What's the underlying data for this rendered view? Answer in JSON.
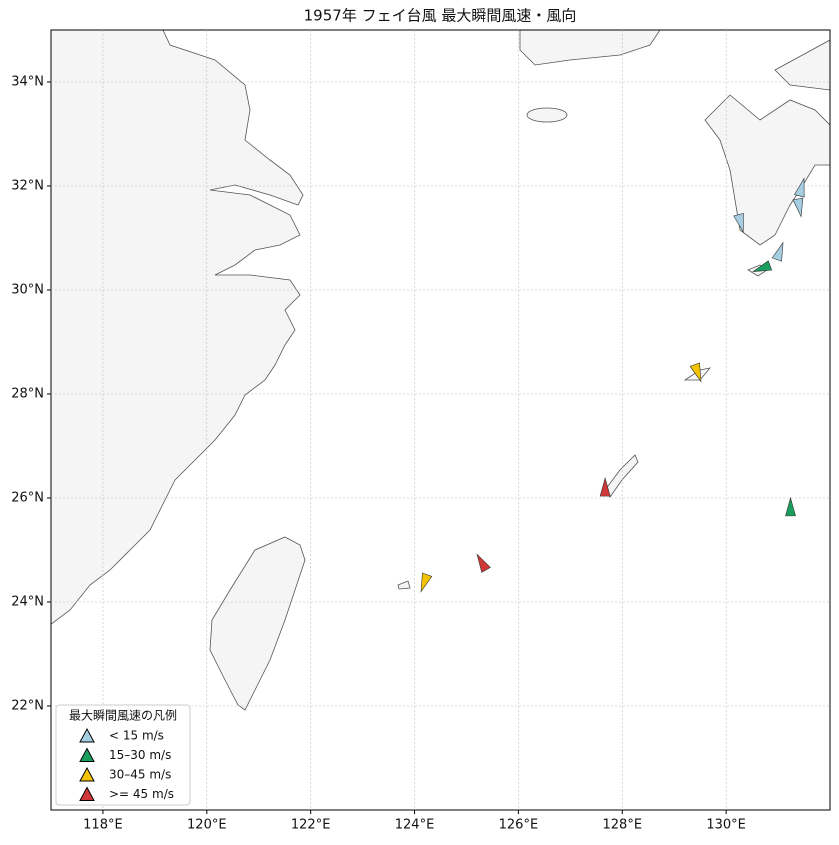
{
  "chart_data": {
    "type": "map",
    "title": "1957年 フェイ台風 最大瞬間風速・風向",
    "xlim": [
      117,
      132
    ],
    "ylim": [
      20,
      35
    ],
    "xticks": [
      {
        "value": 118,
        "label": "118°E"
      },
      {
        "value": 120,
        "label": "120°E"
      },
      {
        "value": 122,
        "label": "122°E"
      },
      {
        "value": 124,
        "label": "124°E"
      },
      {
        "value": 126,
        "label": "126°E"
      },
      {
        "value": 128,
        "label": "128°E"
      },
      {
        "value": 130,
        "label": "130°E"
      }
    ],
    "yticks": [
      {
        "value": 22,
        "label": "22°N"
      },
      {
        "value": 24,
        "label": "24°N"
      },
      {
        "value": 26,
        "label": "26°N"
      },
      {
        "value": 28,
        "label": "28°N"
      },
      {
        "value": 30,
        "label": "30°N"
      },
      {
        "value": 32,
        "label": "32°N"
      },
      {
        "value": 34,
        "label": "34°N"
      }
    ],
    "grid": true,
    "legend_title": "最大瞬間風速の凡例",
    "legend_loc": "lower left",
    "series": [
      {
        "name": "< 15 m/s",
        "color": "#a6cee3",
        "lon": [
          131.45,
          131.41,
          130.28,
          131.03
        ],
        "lat": [
          31.96,
          31.6,
          31.3,
          30.73
        ],
        "direction": [
          15,
          170,
          165,
          20
        ]
      },
      {
        "name": "15–30 m/s",
        "color": "#1a9e5e",
        "lon": [
          130.7,
          131.24
        ],
        "lat": [
          30.42,
          25.81
        ],
        "direction": [
          250,
          0
        ]
      },
      {
        "name": "30–45 m/s",
        "color": "#f5c400",
        "lon": [
          129.45,
          124.19
        ],
        "lat": [
          28.42,
          24.38
        ],
        "direction": [
          160,
          200
        ]
      },
      {
        "name": ">= 45 m/s",
        "color": "#d03838",
        "lon": [
          127.67,
          125.3
        ],
        "lat": [
          26.19,
          24.75
        ],
        "direction": [
          0,
          330
        ]
      }
    ]
  }
}
